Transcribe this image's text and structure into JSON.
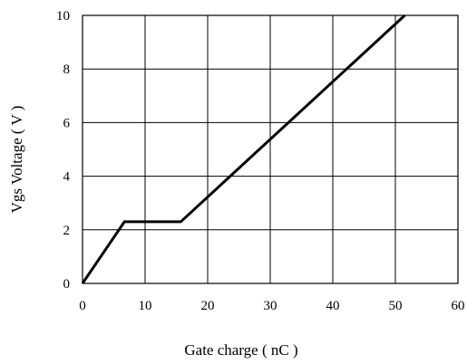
{
  "chart_data": {
    "type": "line",
    "title": "",
    "xlabel": "Gate charge ( nC )",
    "ylabel": "Vgs Voltage ( V )",
    "xlim": [
      0,
      60
    ],
    "ylim": [
      0,
      10
    ],
    "xticks": [
      0,
      10,
      20,
      30,
      40,
      50,
      60
    ],
    "yticks": [
      0,
      2,
      4,
      6,
      8,
      10
    ],
    "xtick_labels": [
      "0",
      "10",
      "20",
      "30",
      "40",
      "50",
      "60"
    ],
    "ytick_labels": [
      "0",
      "2",
      "4",
      "6",
      "8",
      "10"
    ],
    "grid": true,
    "legend": "none",
    "series": [
      {
        "color": "#000000",
        "x": [
          0,
          6.7,
          15.7,
          51.5
        ],
        "y": [
          0,
          2.3,
          2.3,
          10
        ]
      }
    ]
  }
}
